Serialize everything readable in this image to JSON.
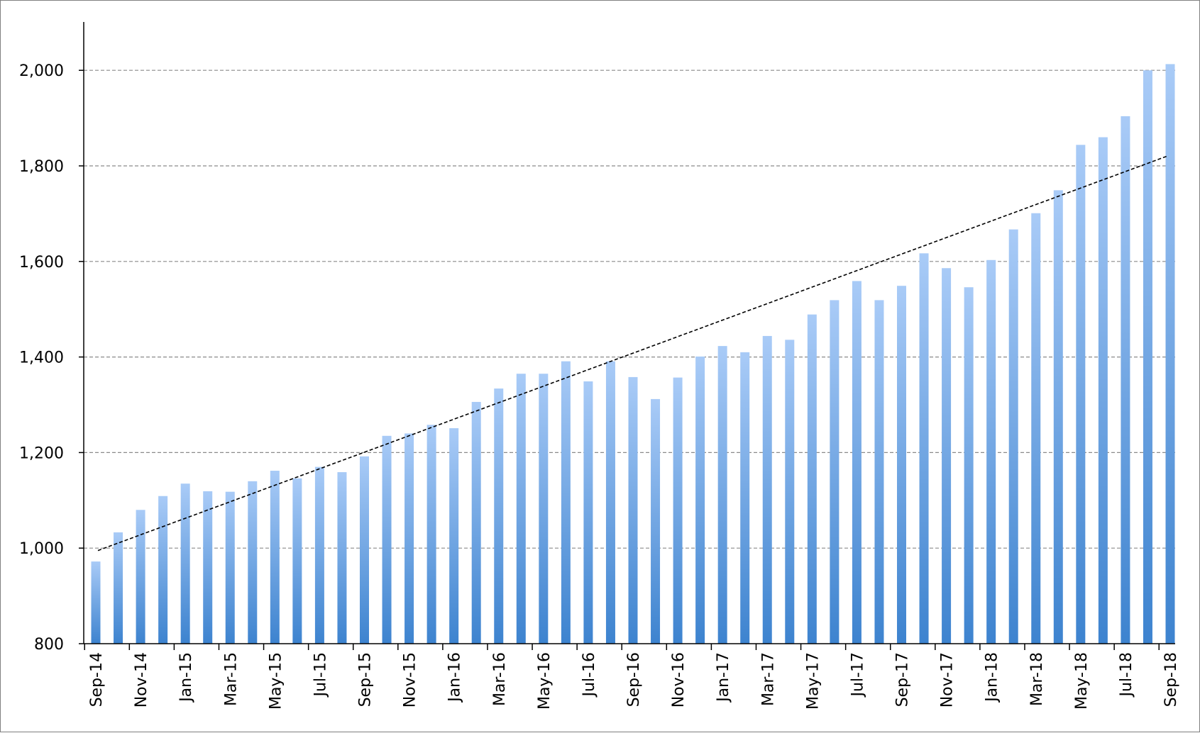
{
  "chart_data": {
    "type": "bar",
    "title": "",
    "xlabel": "",
    "ylabel": "",
    "ylim": [
      800,
      2100
    ],
    "yticks": [
      800,
      1000,
      1200,
      1400,
      1600,
      1800,
      2000
    ],
    "ytick_labels": [
      "800",
      "1,000",
      "1,200",
      "1,400",
      "1,600",
      "1,800",
      "2,000"
    ],
    "grid": "horizontal dashed",
    "legend": "none",
    "bar_fill": "gradient",
    "colors": {
      "bar_top": "#a9cbf7",
      "bar_bottom": "#3d83cf",
      "grid": "#8a8a8a",
      "axis": "#000000",
      "trendline": "#000000"
    },
    "categories": [
      "Sep-14",
      "Oct-14",
      "Nov-14",
      "Dec-14",
      "Jan-15",
      "Feb-15",
      "Mar-15",
      "Apr-15",
      "May-15",
      "Jun-15",
      "Jul-15",
      "Aug-15",
      "Sep-15",
      "Oct-15",
      "Nov-15",
      "Dec-15",
      "Jan-16",
      "Feb-16",
      "Mar-16",
      "Apr-16",
      "May-16",
      "Jun-16",
      "Jul-16",
      "Aug-16",
      "Sep-16",
      "Oct-16",
      "Nov-16",
      "Dec-16",
      "Jan-17",
      "Feb-17",
      "Mar-17",
      "Apr-17",
      "May-17",
      "Jun-17",
      "Jul-17",
      "Aug-17",
      "Sep-17",
      "Oct-17",
      "Nov-17",
      "Dec-17",
      "Jan-18",
      "Feb-18",
      "Mar-18",
      "Apr-18",
      "May-18",
      "Jun-18",
      "Jul-18",
      "Aug-18",
      "Sep-18"
    ],
    "tick_labels": [
      "Sep-14",
      "Nov-14",
      "Jan-15",
      "Mar-15",
      "May-15",
      "Jul-15",
      "Sep-15",
      "Nov-15",
      "Jan-16",
      "Mar-16",
      "May-16",
      "Jul-16",
      "Sep-16",
      "Nov-16",
      "Jan-17",
      "Mar-17",
      "May-17",
      "Jul-17",
      "Sep-17",
      "Nov-17",
      "Jan-18",
      "Mar-18",
      "May-18",
      "Jul-18",
      "Sep-18"
    ],
    "values": [
      972,
      1033,
      1080,
      1109,
      1135,
      1119,
      1118,
      1140,
      1162,
      1146,
      1170,
      1159,
      1192,
      1235,
      1240,
      1258,
      1251,
      1306,
      1334,
      1365,
      1365,
      1391,
      1349,
      1391,
      1358,
      1312,
      1357,
      1401,
      1423,
      1410,
      1444,
      1436,
      1489,
      1519,
      1559,
      1519,
      1549,
      1617,
      1586,
      1546,
      1603,
      1667,
      1701,
      1749,
      1844,
      1860,
      1904,
      2000,
      2013
    ],
    "trendline": {
      "type": "linear",
      "style": "dashed",
      "start_value": 995,
      "end_value": 1820
    }
  }
}
